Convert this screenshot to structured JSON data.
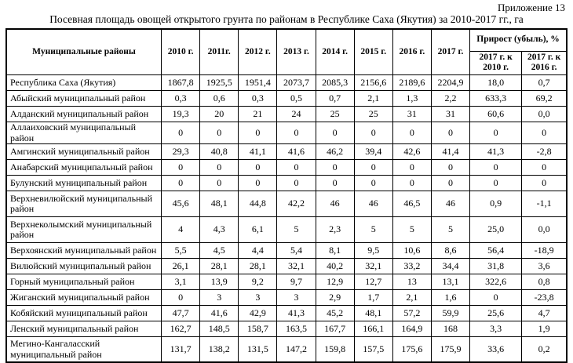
{
  "page": {
    "appendix_label": "Приложение 13",
    "title": "Посевная площадь овощей открытого грунта по районам в Республике Саха (Якутия) за 2010-2017 гг., га"
  },
  "table": {
    "region_column_header": "Муниципальные районы",
    "year_headers": [
      "2010 г.",
      "2011г.",
      "2012 г.",
      "2013 г.",
      "2014 г.",
      "2015 г.",
      "2016 г.",
      "2017 г."
    ],
    "growth_header": "Прирост (убыль), %",
    "growth_subheaders": [
      "2017 г. к 2010 г.",
      "2017 г. к 2016 г."
    ],
    "rows": [
      {
        "region": "Республика Саха (Якутия)",
        "values": [
          "1867,8",
          "1925,5",
          "1951,4",
          "2073,7",
          "2085,3",
          "2156,6",
          "2189,6",
          "2204,9",
          "18,0",
          "0,7"
        ]
      },
      {
        "region": "Абыйский муниципальный район",
        "values": [
          "0,3",
          "0,6",
          "0,3",
          "0,5",
          "0,7",
          "2,1",
          "1,3",
          "2,2",
          "633,3",
          "69,2"
        ]
      },
      {
        "region": "Алданский муниципальный район",
        "values": [
          "19,3",
          "20",
          "21",
          "24",
          "25",
          "25",
          "31",
          "31",
          "60,6",
          "0,0"
        ]
      },
      {
        "region": "Аллаиховский муниципальный район",
        "values": [
          "0",
          "0",
          "0",
          "0",
          "0",
          "0",
          "0",
          "0",
          "0",
          "0"
        ]
      },
      {
        "region": "Амгинский муниципальный район",
        "values": [
          "29,3",
          "40,8",
          "41,1",
          "41,6",
          "46,2",
          "39,4",
          "42,6",
          "41,4",
          "41,3",
          "-2,8"
        ]
      },
      {
        "region": "Анабарский муниципальный район",
        "values": [
          "0",
          "0",
          "0",
          "0",
          "0",
          "0",
          "0",
          "0",
          "0",
          "0"
        ]
      },
      {
        "region": "Булунский муниципальный район",
        "values": [
          "0",
          "0",
          "0",
          "0",
          "0",
          "0",
          "0",
          "0",
          "0",
          "0"
        ]
      },
      {
        "region": "Верхневилюйский муниципальный район",
        "values": [
          "45,6",
          "48,1",
          "44,8",
          "42,2",
          "46",
          "46",
          "46,5",
          "46",
          "0,9",
          "-1,1"
        ]
      },
      {
        "region": "Верхнеколымский муниципальный район",
        "values": [
          "4",
          "4,3",
          "6,1",
          "5",
          "2,3",
          "5",
          "5",
          "5",
          "25,0",
          "0,0"
        ]
      },
      {
        "region": "Верхоянский муниципальный район",
        "values": [
          "5,5",
          "4,5",
          "4,4",
          "5,4",
          "8,1",
          "9,5",
          "10,6",
          "8,6",
          "56,4",
          "-18,9"
        ]
      },
      {
        "region": "Вилюйский муниципальный район",
        "values": [
          "26,1",
          "28,1",
          "28,1",
          "32,1",
          "40,2",
          "32,1",
          "33,2",
          "34,4",
          "31,8",
          "3,6"
        ]
      },
      {
        "region": "Горный муниципальный район",
        "values": [
          "3,1",
          "13,9",
          "9,2",
          "9,7",
          "12,9",
          "12,7",
          "13",
          "13,1",
          "322,6",
          "0,8"
        ]
      },
      {
        "region": "Жиганский муниципальный район",
        "values": [
          "0",
          "3",
          "3",
          "3",
          "2,9",
          "1,7",
          "2,1",
          "1,6",
          "0",
          "-23,8"
        ]
      },
      {
        "region": "Кобяйский муниципальный район",
        "values": [
          "47,7",
          "41,6",
          "42,9",
          "41,3",
          "45,2",
          "48,1",
          "57,2",
          "59,9",
          "25,6",
          "4,7"
        ]
      },
      {
        "region": "Ленский муниципальный район",
        "values": [
          "162,7",
          "148,5",
          "158,7",
          "163,5",
          "167,7",
          "166,1",
          "164,9",
          "168",
          "3,3",
          "1,9"
        ]
      },
      {
        "region": "Мегино-Кангаласский муниципальный район",
        "values": [
          "131,7",
          "138,2",
          "131,5",
          "147,2",
          "159,8",
          "157,5",
          "175,6",
          "175,9",
          "33,6",
          "0,2"
        ]
      }
    ]
  }
}
